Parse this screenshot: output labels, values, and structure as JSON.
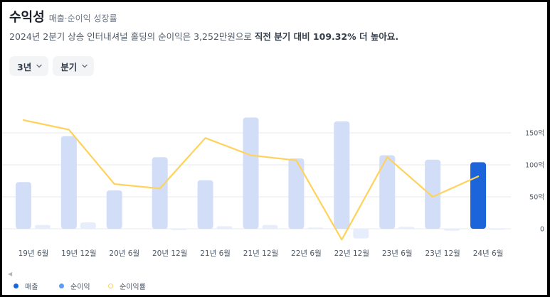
{
  "header": {
    "title": "수익성",
    "subtitle": "매출·순이익 성장률"
  },
  "summary": {
    "text_before": "2024년 2분기 상송 인터내셔널 홀딩의 순이익은 3,252만원으로 ",
    "text_bold": "직전 분기 대비 109.32% 더 높아요."
  },
  "filters": {
    "period_label": "3년",
    "unit_label": "분기"
  },
  "legend": {
    "collapse_icon": "◀",
    "revenue": "매출",
    "net_income": "순이익",
    "margin": "순이익률"
  },
  "colors": {
    "revenue_bar": "#d2def8",
    "revenue_bar_latest": "#1b64da",
    "net_income_bar": "#e7eefb",
    "net_income_dot": "#5c9ef5",
    "revenue_dot": "#1b64da",
    "margin_line": "#ffd25c",
    "grid": "#e5e8eb",
    "tick_text": "#4e5968"
  },
  "chart_data": {
    "type": "bar",
    "categories": [
      "19년 6월",
      "19년 12월",
      "20년 6월",
      "20년 12월",
      "21년 6월",
      "21년 12월",
      "22년 6월",
      "22년 12월",
      "23년 6월",
      "23년 12월",
      "24년 6월"
    ],
    "series": [
      {
        "name": "매출",
        "type": "bar",
        "values": [
          73,
          145,
          60,
          112,
          76,
          174,
          110,
          168,
          115,
          108,
          104
        ]
      },
      {
        "name": "순이익",
        "type": "bar",
        "values": [
          6,
          10,
          0,
          -2,
          4,
          6,
          2,
          -15,
          3,
          -3,
          -1
        ]
      },
      {
        "name": "순이익률",
        "type": "line",
        "values": [
          170,
          155,
          70,
          63,
          142,
          115,
          107,
          -17,
          112,
          50,
          82
        ]
      }
    ],
    "y_ticks": [
      {
        "value": 0,
        "label": "0"
      },
      {
        "value": 50,
        "label": "50억"
      },
      {
        "value": 100,
        "label": "100억"
      },
      {
        "value": 150,
        "label": "150억"
      }
    ],
    "ylim": [
      -20,
      185
    ],
    "grid": true,
    "legend_position": "bottom-left"
  }
}
